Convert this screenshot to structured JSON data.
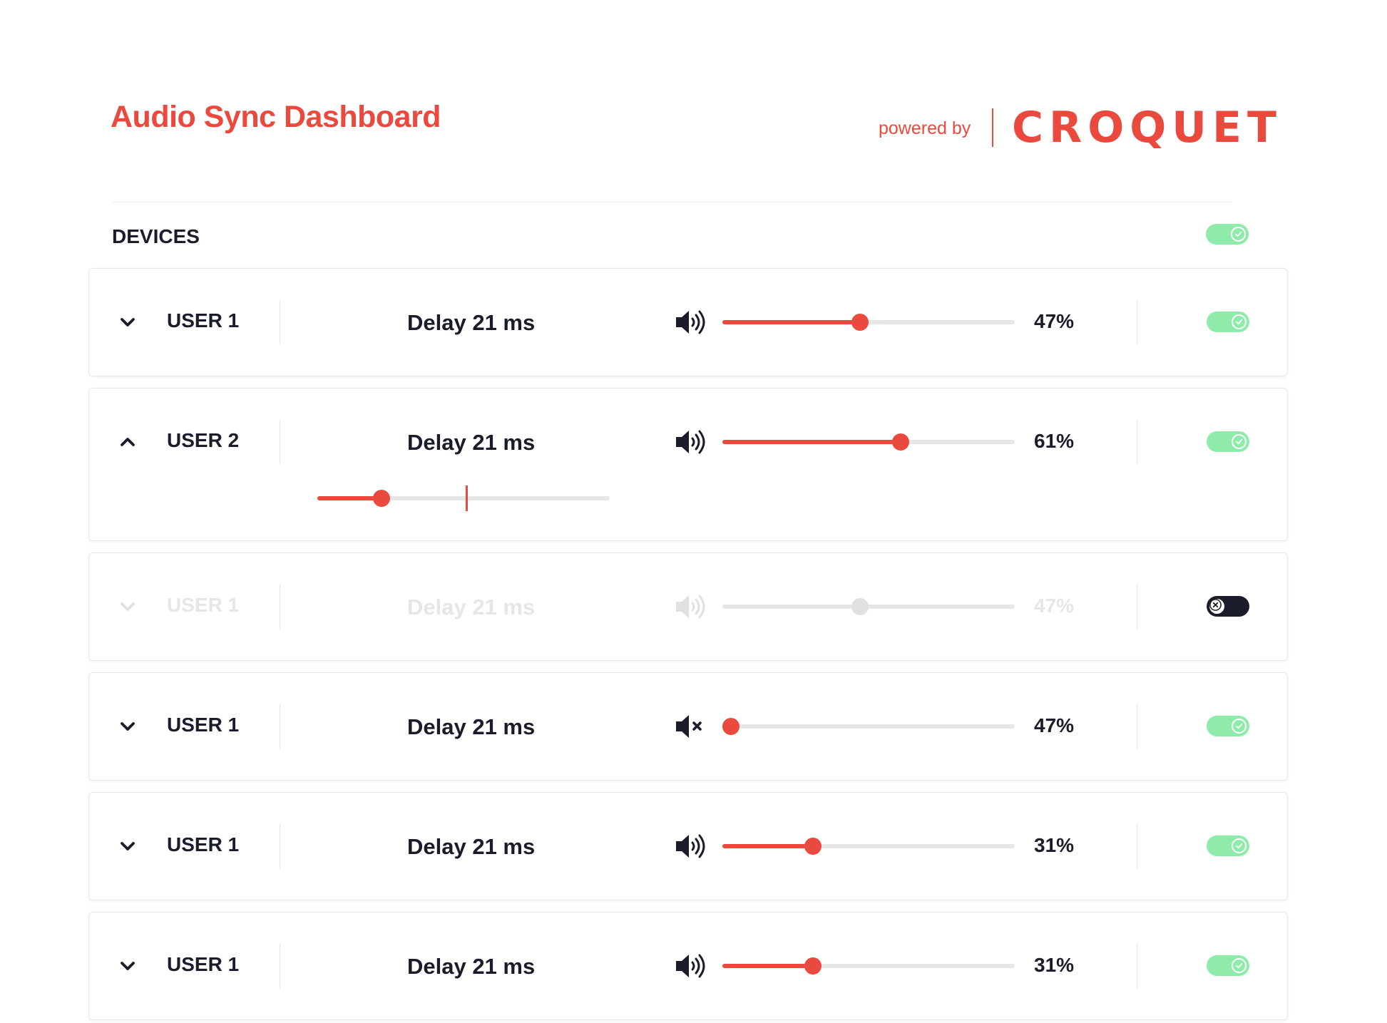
{
  "colors": {
    "accent": "#ea4a3e",
    "track": "#e7e7e7",
    "toggle_on": "#8eebaa",
    "toggle_off": "#1b1c2b",
    "text": "#1b1c2b",
    "disabled": "#e0e0e0"
  },
  "header": {
    "title": "Audio Sync Dashboard",
    "powered_by": "powered by",
    "logo": "CROQUET"
  },
  "section": {
    "title": "DEVICES",
    "master_enabled": true
  },
  "devices": [
    {
      "name": "USER 1",
      "delay": "Delay 21 ms",
      "volume": 0.47,
      "volume_label": "47%",
      "muted": false,
      "expanded": false,
      "enabled": true,
      "speaker_icon": "speaker-icon"
    },
    {
      "name": "USER 2",
      "delay": "Delay 21 ms",
      "volume": 0.61,
      "volume_label": "61%",
      "muted": false,
      "expanded": true,
      "enabled": true,
      "speaker_icon": "speaker-icon",
      "delay_slider": 0.22,
      "delay_marker": 0.51
    },
    {
      "name": "USER 1",
      "delay": "Delay 21 ms",
      "volume": 0.47,
      "volume_label": "47%",
      "muted": false,
      "expanded": false,
      "enabled": false,
      "speaker_icon": "speaker-icon"
    },
    {
      "name": "USER 1",
      "delay": "Delay 21 ms",
      "volume": 0.0,
      "volume_label": "47%",
      "muted": true,
      "expanded": false,
      "enabled": true,
      "speaker_icon": "speaker-muted-icon"
    },
    {
      "name": "USER 1",
      "delay": "Delay 21 ms",
      "volume": 0.31,
      "volume_label": "31%",
      "muted": false,
      "expanded": false,
      "enabled": true,
      "speaker_icon": "speaker-icon"
    },
    {
      "name": "USER 1",
      "delay": "Delay 21 ms",
      "volume": 0.31,
      "volume_label": "31%",
      "muted": false,
      "expanded": false,
      "enabled": true,
      "speaker_icon": "speaker-icon"
    }
  ]
}
